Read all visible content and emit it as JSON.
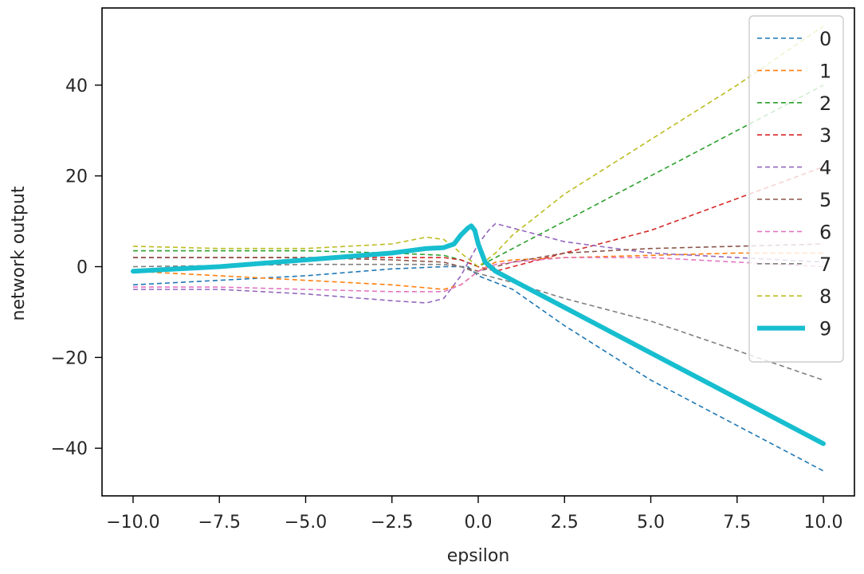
{
  "chart_data": {
    "type": "line",
    "xlabel": "epsilon",
    "ylabel": "network output",
    "xlim": [
      -10.9,
      10.9
    ],
    "ylim": [
      -50.5,
      57
    ],
    "xticks": [
      -10,
      -7.5,
      -5,
      -2.5,
      0,
      2.5,
      5,
      7.5,
      10
    ],
    "xtick_labels": [
      "−10.0",
      "−7.5",
      "−5.0",
      "−2.5",
      "0.0",
      "2.5",
      "5.0",
      "7.5",
      "10.0"
    ],
    "yticks": [
      40,
      20,
      0,
      -20,
      -40
    ],
    "ytick_labels": [
      "40",
      "20",
      "0",
      "−20",
      "−40"
    ],
    "grid": false,
    "legend_position": "upper-right",
    "series": [
      {
        "name": "0",
        "color": "#1f77b4",
        "style": "dashed",
        "x": [
          -10,
          -7.5,
          -5,
          -2.5,
          -1,
          -0.3,
          0,
          0.5,
          1,
          2.5,
          5,
          7.5,
          10
        ],
        "y": [
          -4,
          -3,
          -2,
          -0.5,
          0,
          0,
          -2,
          -3.5,
          -5,
          -13,
          -25,
          -35,
          -45
        ]
      },
      {
        "name": "1",
        "color": "#ff7f0e",
        "style": "dashed",
        "x": [
          -10,
          -5,
          -2.5,
          -1,
          -0.5,
          0,
          0.5,
          1,
          2.5,
          5,
          7.5,
          10
        ],
        "y": [
          -1,
          -3,
          -4,
          -5,
          -4,
          -1,
          1,
          1.5,
          2,
          2.5,
          3,
          3
        ]
      },
      {
        "name": "2",
        "color": "#2ca02c",
        "style": "dashed",
        "x": [
          -10,
          -5,
          -2.5,
          -1,
          -0.5,
          0,
          0.5,
          1,
          2.5,
          5,
          7.5,
          10
        ],
        "y": [
          3.5,
          3.5,
          3,
          2.5,
          1.5,
          0,
          2,
          4,
          10,
          20,
          30,
          40
        ]
      },
      {
        "name": "3",
        "color": "#d62728",
        "style": "dashed",
        "x": [
          -10,
          -5,
          -2.5,
          -1,
          -0.5,
          0,
          0.5,
          1,
          2.5,
          5,
          7.5,
          10
        ],
        "y": [
          2,
          2,
          2,
          2,
          1.5,
          0,
          -1,
          0,
          3,
          8,
          15,
          22
        ]
      },
      {
        "name": "4",
        "color": "#9467bd",
        "style": "dashed",
        "x": [
          -10,
          -7.5,
          -5,
          -2.5,
          -1.5,
          -1,
          -0.5,
          0,
          0.3,
          0.5,
          1,
          2.5,
          5,
          7.5,
          10
        ],
        "y": [
          -5,
          -5,
          -6,
          -7.5,
          -8,
          -7,
          -2,
          5,
          8,
          9.5,
          8.5,
          5.5,
          3,
          2,
          1
        ]
      },
      {
        "name": "5",
        "color": "#8c564b",
        "style": "dashed",
        "x": [
          -10,
          -5,
          -2.5,
          -1,
          -0.5,
          0,
          0.5,
          1,
          2.5,
          5,
          7.5,
          10
        ],
        "y": [
          2,
          2,
          1.5,
          1,
          0,
          -1,
          0,
          1,
          3,
          4,
          4.5,
          5
        ]
      },
      {
        "name": "6",
        "color": "#e377c2",
        "style": "dashed",
        "x": [
          -10,
          -7.5,
          -5,
          -2.5,
          -1,
          -0.5,
          0,
          0.5,
          1,
          2.5,
          5,
          7.5,
          10
        ],
        "y": [
          -4.5,
          -4.5,
          -5,
          -5.5,
          -5.5,
          -4,
          -1,
          0.5,
          1,
          2,
          2,
          1,
          0
        ]
      },
      {
        "name": "7",
        "color": "#7f7f7f",
        "style": "dashed",
        "x": [
          -10,
          -5,
          -2.5,
          -1,
          -0.5,
          0,
          0.5,
          1,
          2.5,
          5,
          7.5,
          10
        ],
        "y": [
          0,
          0.5,
          0.5,
          0.5,
          0,
          -1.5,
          -2.5,
          -3.5,
          -7,
          -12,
          -18.5,
          -25
        ]
      },
      {
        "name": "8",
        "color": "#bcbd22",
        "style": "dashed",
        "x": [
          -10,
          -7.5,
          -5,
          -2.5,
          -1.5,
          -1,
          -0.5,
          0,
          0.5,
          1,
          2.5,
          5,
          7.5,
          10
        ],
        "y": [
          4.5,
          4,
          4,
          5,
          6.5,
          6,
          3,
          0,
          3,
          7,
          16,
          28,
          40,
          53
        ]
      },
      {
        "name": "9",
        "color": "#17becf",
        "style": "solid",
        "x": [
          -10,
          -7.5,
          -5,
          -2.5,
          -1.5,
          -1,
          -0.7,
          -0.5,
          -0.3,
          -0.2,
          -0.1,
          0,
          0.2,
          0.5,
          1,
          2.5,
          5,
          7.5,
          10
        ],
        "y": [
          -1,
          0,
          1.5,
          3,
          4,
          4.2,
          5,
          7,
          8.5,
          9,
          8,
          5,
          1,
          -1,
          -3,
          -9,
          -19,
          -29,
          -39
        ]
      }
    ]
  }
}
